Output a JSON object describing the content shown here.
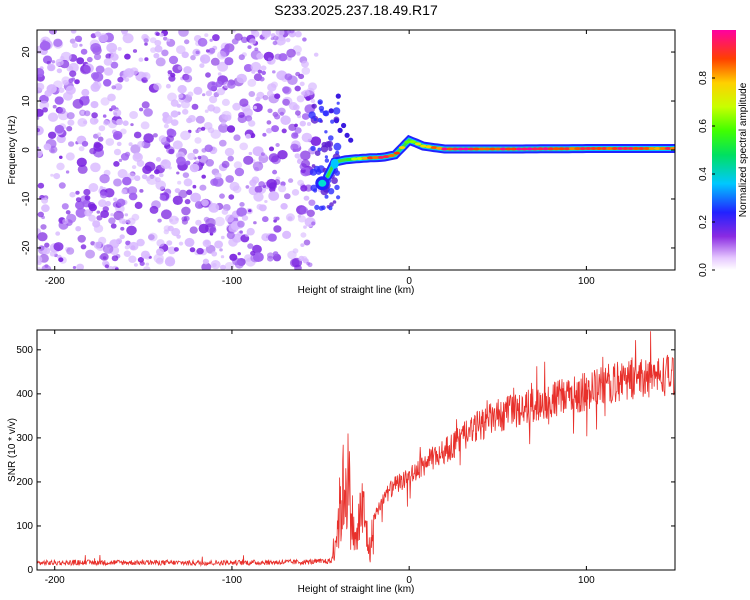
{
  "chart_data": [
    {
      "type": "heatmap",
      "title": "S233.2025.237.18.49.R17",
      "xlabel": "Height of straight line (km)",
      "ylabel": "Frequency (Hz)",
      "xlim": [
        -210,
        150
      ],
      "ylim": [
        -24.5,
        24.5
      ],
      "xticks": [
        -200,
        -100,
        0,
        100
      ],
      "yticks": [
        -20,
        -10,
        0,
        10,
        20
      ],
      "xtick_labels": [
        "-200",
        "-100",
        "0",
        "100"
      ],
      "ytick_labels": [
        "-20",
        "-10",
        "0",
        "10",
        "20"
      ],
      "noise_region_x": [
        -210,
        -54
      ],
      "signal_track": [
        {
          "x": -48,
          "y": -6.8,
          "amp": 0.45
        },
        {
          "x": -42,
          "y": -2.5,
          "amp": 0.3
        },
        {
          "x": -36,
          "y": -2.0,
          "amp": 0.4
        },
        {
          "x": -30,
          "y": -1.8,
          "amp": 0.65
        },
        {
          "x": -22,
          "y": -1.6,
          "amp": 0.85
        },
        {
          "x": -15,
          "y": -1.5,
          "amp": 0.9
        },
        {
          "x": -8,
          "y": -1.0,
          "amp": 0.85
        },
        {
          "x": 0,
          "y": 2.0,
          "amp": 0.6
        },
        {
          "x": 8,
          "y": 0.8,
          "amp": 0.75
        },
        {
          "x": 20,
          "y": 0.2,
          "amp": 0.92
        },
        {
          "x": 60,
          "y": 0.2,
          "amp": 0.92
        },
        {
          "x": 100,
          "y": 0.3,
          "amp": 0.9
        },
        {
          "x": 150,
          "y": 0.3,
          "amp": 0.88
        }
      ],
      "colorbar": {
        "label": "Normalized spectral amplitude",
        "range": [
          0,
          1
        ],
        "ticks": [
          "0.0",
          "0.2",
          "0.4",
          "0.6",
          "0.8"
        ]
      }
    },
    {
      "type": "line",
      "xlabel": "Height of straight line (km)",
      "ylabel": "SNR (10 * v/v)",
      "xlim": [
        -210,
        150
      ],
      "ylim": [
        0,
        545
      ],
      "xticks": [
        -200,
        -100,
        0,
        100
      ],
      "yticks": [
        0,
        100,
        200,
        300,
        400,
        500
      ],
      "xtick_labels": [
        "-200",
        "-100",
        "0",
        "100"
      ],
      "ytick_labels": [
        "0",
        "100",
        "200",
        "300",
        "400",
        "500"
      ],
      "series": [
        {
          "name": "SNR",
          "color": "#e8302b",
          "x": [
            -210,
            -180,
            -150,
            -120,
            -90,
            -60,
            -44,
            -40,
            -38,
            -35,
            -33,
            -30,
            -27,
            -25,
            -22,
            -20,
            -15,
            -10,
            -5,
            0,
            10,
            20,
            30,
            40,
            50,
            60,
            70,
            80,
            90,
            100,
            110,
            120,
            130,
            140,
            150
          ],
          "y": [
            16,
            17,
            17,
            16,
            17,
            18,
            20,
            120,
            180,
            250,
            150,
            60,
            160,
            120,
            40,
            120,
            160,
            185,
            200,
            210,
            245,
            270,
            300,
            330,
            350,
            360,
            375,
            385,
            395,
            405,
            420,
            430,
            435,
            440,
            445
          ]
        }
      ]
    }
  ]
}
